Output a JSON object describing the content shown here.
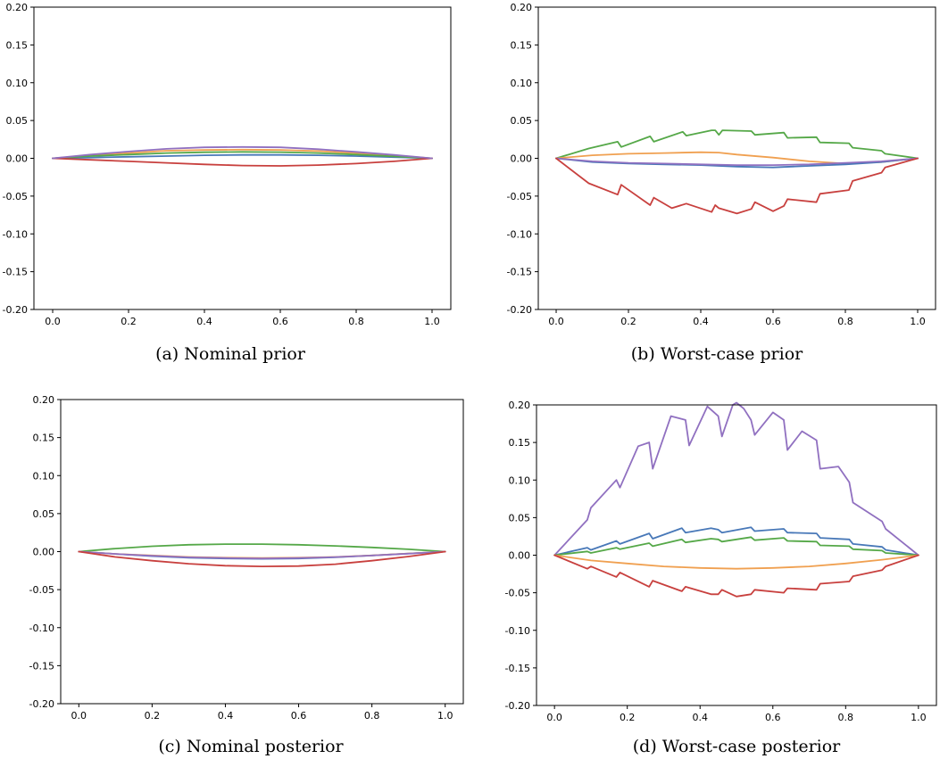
{
  "colors": {
    "blue": "#4878b8",
    "orange": "#f0a050",
    "green": "#55a848",
    "red": "#c8403e",
    "purple": "#9070c0"
  },
  "captions": {
    "a": "(a)  Nominal prior",
    "b": "(b)  Worst-case prior",
    "c": "(c)  Nominal posterior",
    "d": "(d)  Worst-case posterior"
  },
  "chart_data": [
    {
      "type": "line",
      "xlim": [
        0.0,
        1.0
      ],
      "ylim": [
        -0.2,
        0.2
      ],
      "xticks": [
        "0.0",
        "0.2",
        "0.4",
        "0.6",
        "0.8",
        "1.0"
      ],
      "yticks": [
        "0.20",
        "0.15",
        "0.10",
        "0.05",
        "0.00",
        "-0.05",
        "-0.10",
        "-0.15",
        "-0.20"
      ],
      "grid": false,
      "series": [
        {
          "color": "blue",
          "x": [
            0.0,
            0.1,
            0.2,
            0.3,
            0.4,
            0.5,
            0.6,
            0.7,
            0.8,
            0.9,
            1.0
          ],
          "y": [
            0.0,
            0.001,
            0.002,
            0.003,
            0.004,
            0.0045,
            0.0045,
            0.004,
            0.003,
            0.0015,
            0.0
          ]
        },
        {
          "color": "orange",
          "x": [
            0.0,
            0.1,
            0.2,
            0.3,
            0.4,
            0.5,
            0.6,
            0.7,
            0.8,
            0.9,
            1.0
          ],
          "y": [
            0.0,
            0.004,
            0.007,
            0.01,
            0.011,
            0.0115,
            0.011,
            0.0095,
            0.007,
            0.004,
            0.0
          ]
        },
        {
          "color": "green",
          "x": [
            0.0,
            0.1,
            0.2,
            0.3,
            0.4,
            0.5,
            0.6,
            0.7,
            0.8,
            0.9,
            1.0
          ],
          "y": [
            0.0,
            0.003,
            0.005,
            0.007,
            0.008,
            0.0085,
            0.0082,
            0.007,
            0.005,
            0.0025,
            0.0
          ]
        },
        {
          "color": "red",
          "x": [
            0.0,
            0.1,
            0.2,
            0.3,
            0.4,
            0.5,
            0.6,
            0.7,
            0.8,
            0.9,
            1.0
          ],
          "y": [
            0.0,
            -0.002,
            -0.004,
            -0.006,
            -0.008,
            -0.0095,
            -0.01,
            -0.009,
            -0.007,
            -0.004,
            0.0
          ]
        },
        {
          "color": "purple",
          "x": [
            0.0,
            0.1,
            0.2,
            0.3,
            0.4,
            0.5,
            0.6,
            0.7,
            0.8,
            0.9,
            1.0
          ],
          "y": [
            0.0,
            0.005,
            0.009,
            0.0125,
            0.0145,
            0.015,
            0.0145,
            0.012,
            0.0085,
            0.0045,
            0.0
          ]
        }
      ]
    },
    {
      "type": "line",
      "xlim": [
        0.0,
        1.0
      ],
      "ylim": [
        -0.2,
        0.2
      ],
      "xticks": [
        "0.0",
        "0.2",
        "0.4",
        "0.6",
        "0.8",
        "1.0"
      ],
      "yticks": [
        "0.20",
        "0.15",
        "0.10",
        "0.05",
        "0.00",
        "-0.05",
        "-0.10",
        "-0.15",
        "-0.20"
      ],
      "grid": false,
      "series": [
        {
          "color": "green",
          "x": [
            0.0,
            0.09,
            0.17,
            0.18,
            0.26,
            0.27,
            0.35,
            0.36,
            0.43,
            0.44,
            0.45,
            0.46,
            0.54,
            0.55,
            0.63,
            0.64,
            0.72,
            0.73,
            0.81,
            0.82,
            0.9,
            0.91,
            1.0
          ],
          "y": [
            0.0,
            0.013,
            0.022,
            0.015,
            0.029,
            0.022,
            0.035,
            0.03,
            0.037,
            0.037,
            0.031,
            0.037,
            0.036,
            0.031,
            0.034,
            0.027,
            0.028,
            0.021,
            0.02,
            0.014,
            0.01,
            0.006,
            0.0
          ]
        },
        {
          "color": "orange",
          "x": [
            0.0,
            0.1,
            0.2,
            0.3,
            0.4,
            0.45,
            0.5,
            0.6,
            0.7,
            0.8,
            0.9,
            1.0
          ],
          "y": [
            0.0,
            0.004,
            0.006,
            0.007,
            0.008,
            0.0075,
            0.005,
            0.001,
            -0.004,
            -0.007,
            -0.005,
            0.0
          ]
        },
        {
          "color": "blue",
          "x": [
            0.0,
            0.1,
            0.2,
            0.3,
            0.4,
            0.5,
            0.6,
            0.7,
            0.8,
            0.9,
            1.0
          ],
          "y": [
            0.0,
            -0.005,
            -0.007,
            -0.008,
            -0.009,
            -0.011,
            -0.012,
            -0.01,
            -0.008,
            -0.005,
            0.0
          ]
        },
        {
          "color": "purple",
          "x": [
            0.0,
            0.1,
            0.2,
            0.3,
            0.4,
            0.5,
            0.6,
            0.7,
            0.8,
            0.9,
            1.0
          ],
          "y": [
            0.0,
            -0.004,
            -0.006,
            -0.007,
            -0.008,
            -0.009,
            -0.009,
            -0.008,
            -0.006,
            -0.004,
            0.0
          ]
        },
        {
          "color": "red",
          "x": [
            0.0,
            0.09,
            0.17,
            0.18,
            0.26,
            0.27,
            0.32,
            0.36,
            0.43,
            0.44,
            0.45,
            0.5,
            0.54,
            0.55,
            0.6,
            0.63,
            0.64,
            0.72,
            0.73,
            0.81,
            0.82,
            0.9,
            0.91,
            1.0
          ],
          "y": [
            0.0,
            -0.033,
            -0.048,
            -0.035,
            -0.062,
            -0.052,
            -0.066,
            -0.06,
            -0.071,
            -0.062,
            -0.066,
            -0.073,
            -0.067,
            -0.058,
            -0.07,
            -0.063,
            -0.054,
            -0.058,
            -0.047,
            -0.042,
            -0.03,
            -0.019,
            -0.012,
            0.0
          ]
        }
      ]
    },
    {
      "type": "line",
      "xlim": [
        0.0,
        1.0
      ],
      "ylim": [
        -0.2,
        0.2
      ],
      "xticks": [
        "0.0",
        "0.2",
        "0.4",
        "0.6",
        "0.8",
        "1.0"
      ],
      "yticks": [
        "0.20",
        "0.15",
        "0.10",
        "0.05",
        "0.00",
        "-0.05",
        "-0.10",
        "-0.15",
        "-0.20"
      ],
      "grid": false,
      "series": [
        {
          "color": "green",
          "x": [
            0.0,
            0.1,
            0.2,
            0.3,
            0.4,
            0.5,
            0.6,
            0.7,
            0.8,
            0.9,
            1.0
          ],
          "y": [
            0.0,
            0.004,
            0.007,
            0.009,
            0.0098,
            0.0098,
            0.009,
            0.0075,
            0.0055,
            0.003,
            0.0
          ]
        },
        {
          "color": "blue",
          "x": [
            0.0,
            0.1,
            0.2,
            0.3,
            0.4,
            0.5,
            0.6,
            0.7,
            0.8,
            0.9,
            1.0
          ],
          "y": [
            0.0,
            -0.003,
            -0.006,
            -0.008,
            -0.009,
            -0.0095,
            -0.009,
            -0.0075,
            -0.005,
            -0.0025,
            0.0
          ]
        },
        {
          "color": "orange",
          "x": [
            0.0,
            0.1,
            0.2,
            0.3,
            0.4,
            0.5,
            0.6,
            0.7,
            0.8,
            0.9,
            1.0
          ],
          "y": [
            0.0,
            -0.003,
            -0.005,
            -0.007,
            -0.008,
            -0.0085,
            -0.008,
            -0.007,
            -0.005,
            -0.0025,
            0.0
          ]
        },
        {
          "color": "purple",
          "x": [
            0.0,
            0.1,
            0.2,
            0.3,
            0.4,
            0.5,
            0.6,
            0.7,
            0.8,
            0.9,
            1.0
          ],
          "y": [
            0.0,
            -0.003,
            -0.0055,
            -0.0075,
            -0.0085,
            -0.009,
            -0.0085,
            -0.0072,
            -0.0052,
            -0.0027,
            0.0
          ]
        },
        {
          "color": "red",
          "x": [
            0.0,
            0.1,
            0.2,
            0.3,
            0.4,
            0.5,
            0.6,
            0.7,
            0.8,
            0.9,
            1.0
          ],
          "y": [
            0.0,
            -0.007,
            -0.012,
            -0.016,
            -0.0185,
            -0.0195,
            -0.019,
            -0.0165,
            -0.012,
            -0.0065,
            0.0
          ]
        }
      ]
    },
    {
      "type": "line",
      "xlim": [
        0.0,
        1.0
      ],
      "ylim": [
        -0.2,
        0.2
      ],
      "xticks": [
        "0.0",
        "0.2",
        "0.4",
        "0.6",
        "0.8",
        "1.0"
      ],
      "yticks": [
        "0.20",
        "0.15",
        "0.10",
        "0.05",
        "0.00",
        "-0.05",
        "-0.10",
        "-0.15",
        "-0.20"
      ],
      "grid": false,
      "series": [
        {
          "color": "purple",
          "x": [
            0.0,
            0.09,
            0.1,
            0.17,
            0.18,
            0.23,
            0.26,
            0.27,
            0.32,
            0.36,
            0.37,
            0.42,
            0.45,
            0.46,
            0.49,
            0.5,
            0.52,
            0.54,
            0.55,
            0.6,
            0.63,
            0.64,
            0.68,
            0.72,
            0.73,
            0.78,
            0.81,
            0.82,
            0.9,
            0.91,
            1.0
          ],
          "y": [
            0.0,
            0.047,
            0.063,
            0.1,
            0.09,
            0.145,
            0.15,
            0.115,
            0.185,
            0.18,
            0.146,
            0.198,
            0.185,
            0.158,
            0.2,
            0.203,
            0.195,
            0.18,
            0.16,
            0.19,
            0.18,
            0.14,
            0.165,
            0.153,
            0.115,
            0.118,
            0.097,
            0.07,
            0.045,
            0.035,
            0.0
          ]
        },
        {
          "color": "blue",
          "x": [
            0.0,
            0.09,
            0.1,
            0.17,
            0.18,
            0.26,
            0.27,
            0.35,
            0.36,
            0.43,
            0.45,
            0.46,
            0.54,
            0.55,
            0.63,
            0.64,
            0.72,
            0.73,
            0.81,
            0.82,
            0.9,
            0.91,
            1.0
          ],
          "y": [
            0.0,
            0.01,
            0.007,
            0.019,
            0.015,
            0.029,
            0.022,
            0.036,
            0.03,
            0.036,
            0.034,
            0.03,
            0.037,
            0.032,
            0.035,
            0.03,
            0.029,
            0.023,
            0.021,
            0.015,
            0.011,
            0.007,
            0.0
          ]
        },
        {
          "color": "green",
          "x": [
            0.0,
            0.09,
            0.1,
            0.17,
            0.18,
            0.26,
            0.27,
            0.35,
            0.36,
            0.43,
            0.45,
            0.46,
            0.54,
            0.55,
            0.63,
            0.64,
            0.72,
            0.73,
            0.81,
            0.82,
            0.9,
            0.91,
            1.0
          ],
          "y": [
            0.0,
            0.005,
            0.003,
            0.01,
            0.008,
            0.016,
            0.012,
            0.021,
            0.017,
            0.022,
            0.021,
            0.018,
            0.024,
            0.02,
            0.023,
            0.019,
            0.018,
            0.013,
            0.012,
            0.008,
            0.006,
            0.003,
            0.0
          ]
        },
        {
          "color": "orange",
          "x": [
            0.0,
            0.1,
            0.2,
            0.3,
            0.4,
            0.5,
            0.6,
            0.7,
            0.8,
            0.9,
            1.0
          ],
          "y": [
            0.0,
            -0.007,
            -0.011,
            -0.015,
            -0.017,
            -0.018,
            -0.017,
            -0.015,
            -0.011,
            -0.006,
            0.0
          ]
        },
        {
          "color": "red",
          "x": [
            0.0,
            0.09,
            0.1,
            0.17,
            0.18,
            0.26,
            0.27,
            0.35,
            0.36,
            0.43,
            0.45,
            0.46,
            0.5,
            0.54,
            0.55,
            0.63,
            0.64,
            0.72,
            0.73,
            0.81,
            0.82,
            0.9,
            0.91,
            1.0
          ],
          "y": [
            0.0,
            -0.018,
            -0.015,
            -0.029,
            -0.023,
            -0.042,
            -0.034,
            -0.048,
            -0.042,
            -0.052,
            -0.052,
            -0.046,
            -0.055,
            -0.052,
            -0.046,
            -0.05,
            -0.044,
            -0.046,
            -0.038,
            -0.035,
            -0.028,
            -0.02,
            -0.015,
            0.0
          ]
        }
      ]
    }
  ]
}
